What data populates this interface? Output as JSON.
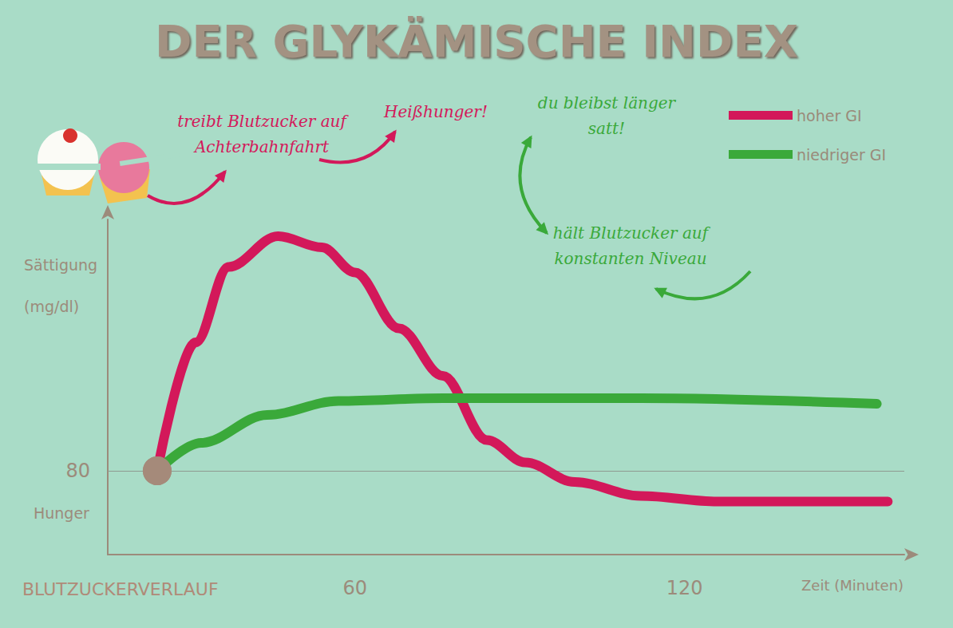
{
  "chart_data": {
    "type": "line",
    "title": "DER GLYKÄMISCHE INDEX",
    "xlabel": "Zeit (Minuten)",
    "ylabel": "Sättigung",
    "yunit": "(mg/dl)",
    "ylabel_low": "Hunger",
    "caption": "BLUTZUCKERVERLAUF",
    "xlim": [
      15,
      160
    ],
    "xticks": [
      60,
      120
    ],
    "ylim": [
      50,
      170
    ],
    "yticks": [
      80
    ],
    "grid": true,
    "legend": "upper right",
    "series": [
      {
        "name": "hoher GI",
        "color": "#d3185a",
        "x": [
          24,
          31,
          37,
          46,
          54,
          60,
          68,
          76,
          84,
          91,
          100,
          112,
          126,
          141,
          157
        ],
        "values": [
          80,
          126,
          153,
          164,
          160,
          151,
          131,
          114,
          91,
          83,
          76,
          71,
          69,
          69,
          69
        ]
      },
      {
        "name": "niedriger GI",
        "color": "#3aa93a",
        "x": [
          24,
          32,
          44,
          57,
          76,
          112,
          155
        ],
        "values": [
          80,
          90,
          100,
          105,
          106,
          106,
          104
        ]
      }
    ],
    "annotations": [
      {
        "text": "treibt Blutzucker auf Achterbahnfahrt",
        "color": "#d3185a"
      },
      {
        "text": "Heißhunger!",
        "color": "#d3185a"
      },
      {
        "text": "du bleibst länger satt!",
        "color": "#3aa93a"
      },
      {
        "text": "hält Blutzucker auf konstanten Niveau",
        "color": "#3aa93a"
      }
    ]
  }
}
